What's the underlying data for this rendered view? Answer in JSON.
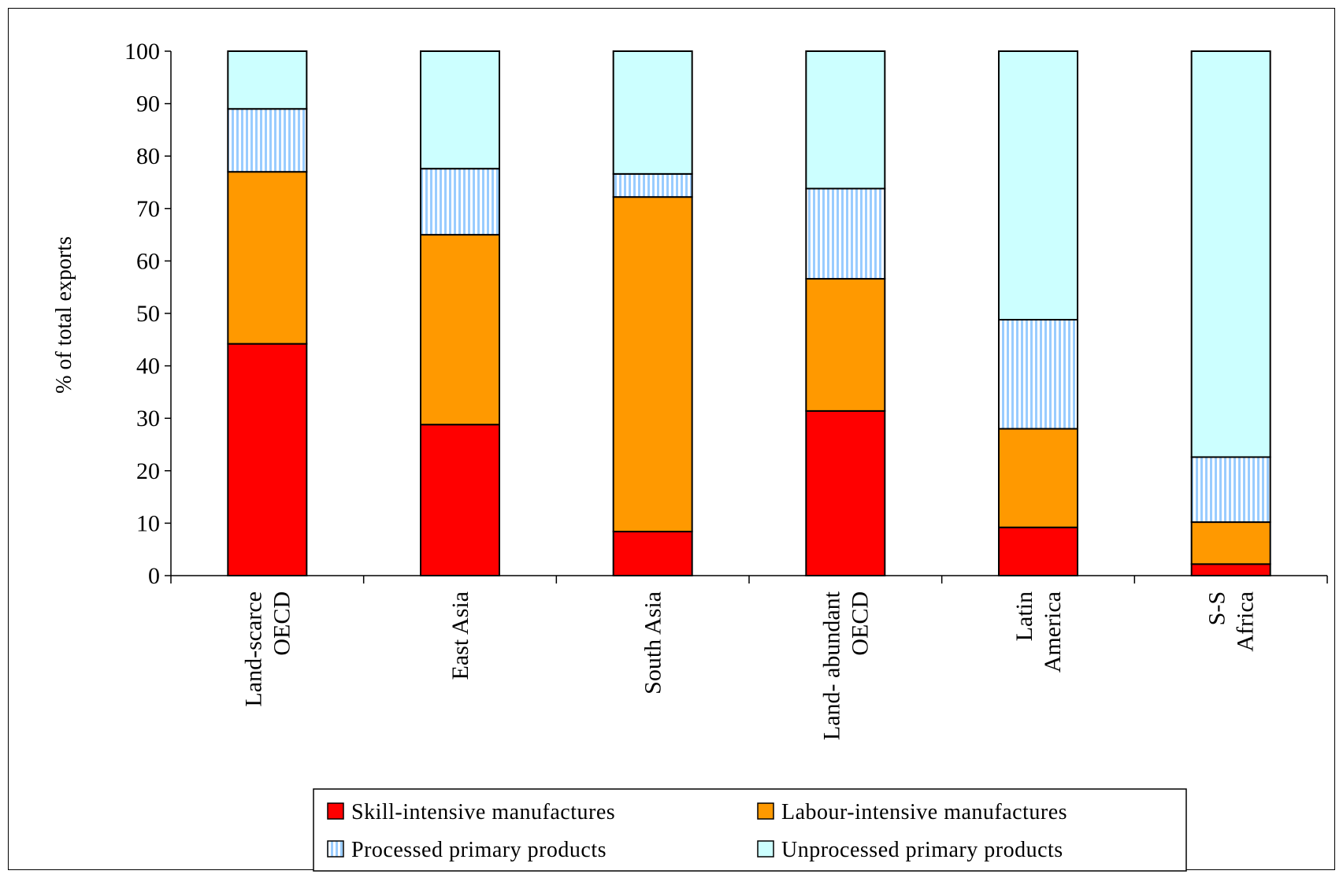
{
  "chart_data": {
    "type": "bar",
    "stacked": true,
    "ylabel": "% of total exports",
    "ylim": [
      0,
      100
    ],
    "yticks": [
      0,
      10,
      20,
      30,
      40,
      50,
      60,
      70,
      80,
      90,
      100
    ],
    "grid": false,
    "legend_position": "bottom",
    "categories": [
      [
        "Land-scarce",
        "OECD"
      ],
      [
        "East Asia"
      ],
      [
        "South Asia"
      ],
      [
        "Land- abundant",
        "OECD"
      ],
      [
        "Latin",
        "America"
      ],
      [
        "S-S",
        "Africa"
      ]
    ],
    "series": [
      {
        "name": "Skill-intensive manufactures",
        "color": "#ff0000",
        "pattern": "solid",
        "values": [
          44.2,
          28.8,
          8.4,
          31.4,
          9.2,
          2.2
        ]
      },
      {
        "name": "Labour-intensive manufactures",
        "color": "#ff9900",
        "pattern": "solid",
        "values": [
          32.8,
          36.2,
          63.8,
          25.2,
          18.8,
          8.0
        ]
      },
      {
        "name": "Processed primary products",
        "color": "#99ccff",
        "pattern": "vertical-stripes",
        "values": [
          12.0,
          12.6,
          4.4,
          17.2,
          20.8,
          12.4
        ]
      },
      {
        "name": "Unprocessed primary products",
        "color": "#ccffff",
        "pattern": "solid",
        "values": [
          11.0,
          22.4,
          23.4,
          26.2,
          51.2,
          77.4
        ]
      }
    ]
  }
}
